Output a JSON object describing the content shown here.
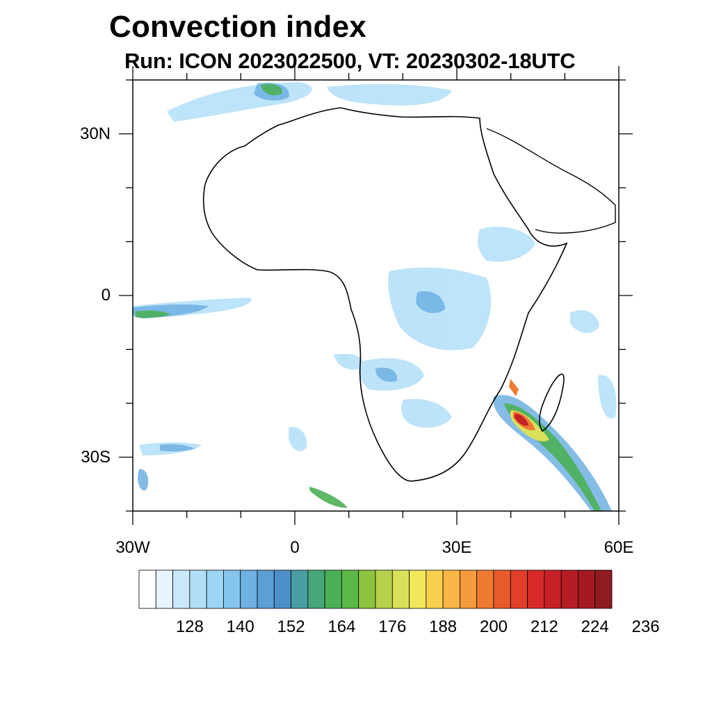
{
  "title": "Convection index",
  "subtitle": "Run: ICON 2023022500,  VT: 20230302-18UTC",
  "map": {
    "lon_range": [
      -30,
      60
    ],
    "lat_range": [
      -40,
      40
    ],
    "lat_ticks": [
      {
        "value": 30,
        "label": "30N"
      },
      {
        "value": 0,
        "label": "0"
      },
      {
        "value": -30,
        "label": "30S"
      }
    ],
    "lon_ticks": [
      {
        "value": -30,
        "label": "30W"
      },
      {
        "value": 0,
        "label": "0"
      },
      {
        "value": 30,
        "label": "30E"
      },
      {
        "value": 60,
        "label": "60E"
      }
    ]
  },
  "colorbar": {
    "colors": [
      "#ffffff",
      "#e6f4fd",
      "#c9e8fb",
      "#b2dff7",
      "#9dd5f5",
      "#85c4ec",
      "#6fb0e2",
      "#5a9fd6",
      "#4e8fca",
      "#4a9ea3",
      "#47a67a",
      "#4baf56",
      "#5cb947",
      "#8dc43f",
      "#b7d24a",
      "#dbe05a",
      "#f2e65b",
      "#f8cf4f",
      "#f8b646",
      "#f59a3d",
      "#ef7b33",
      "#e85c2c",
      "#e03f2a",
      "#d72a28",
      "#c52126",
      "#b51c24",
      "#a31a22",
      "#8e1b1f"
    ],
    "labels": [
      "128",
      "140",
      "152",
      "164",
      "176",
      "188",
      "200",
      "212",
      "224",
      "236"
    ]
  }
}
